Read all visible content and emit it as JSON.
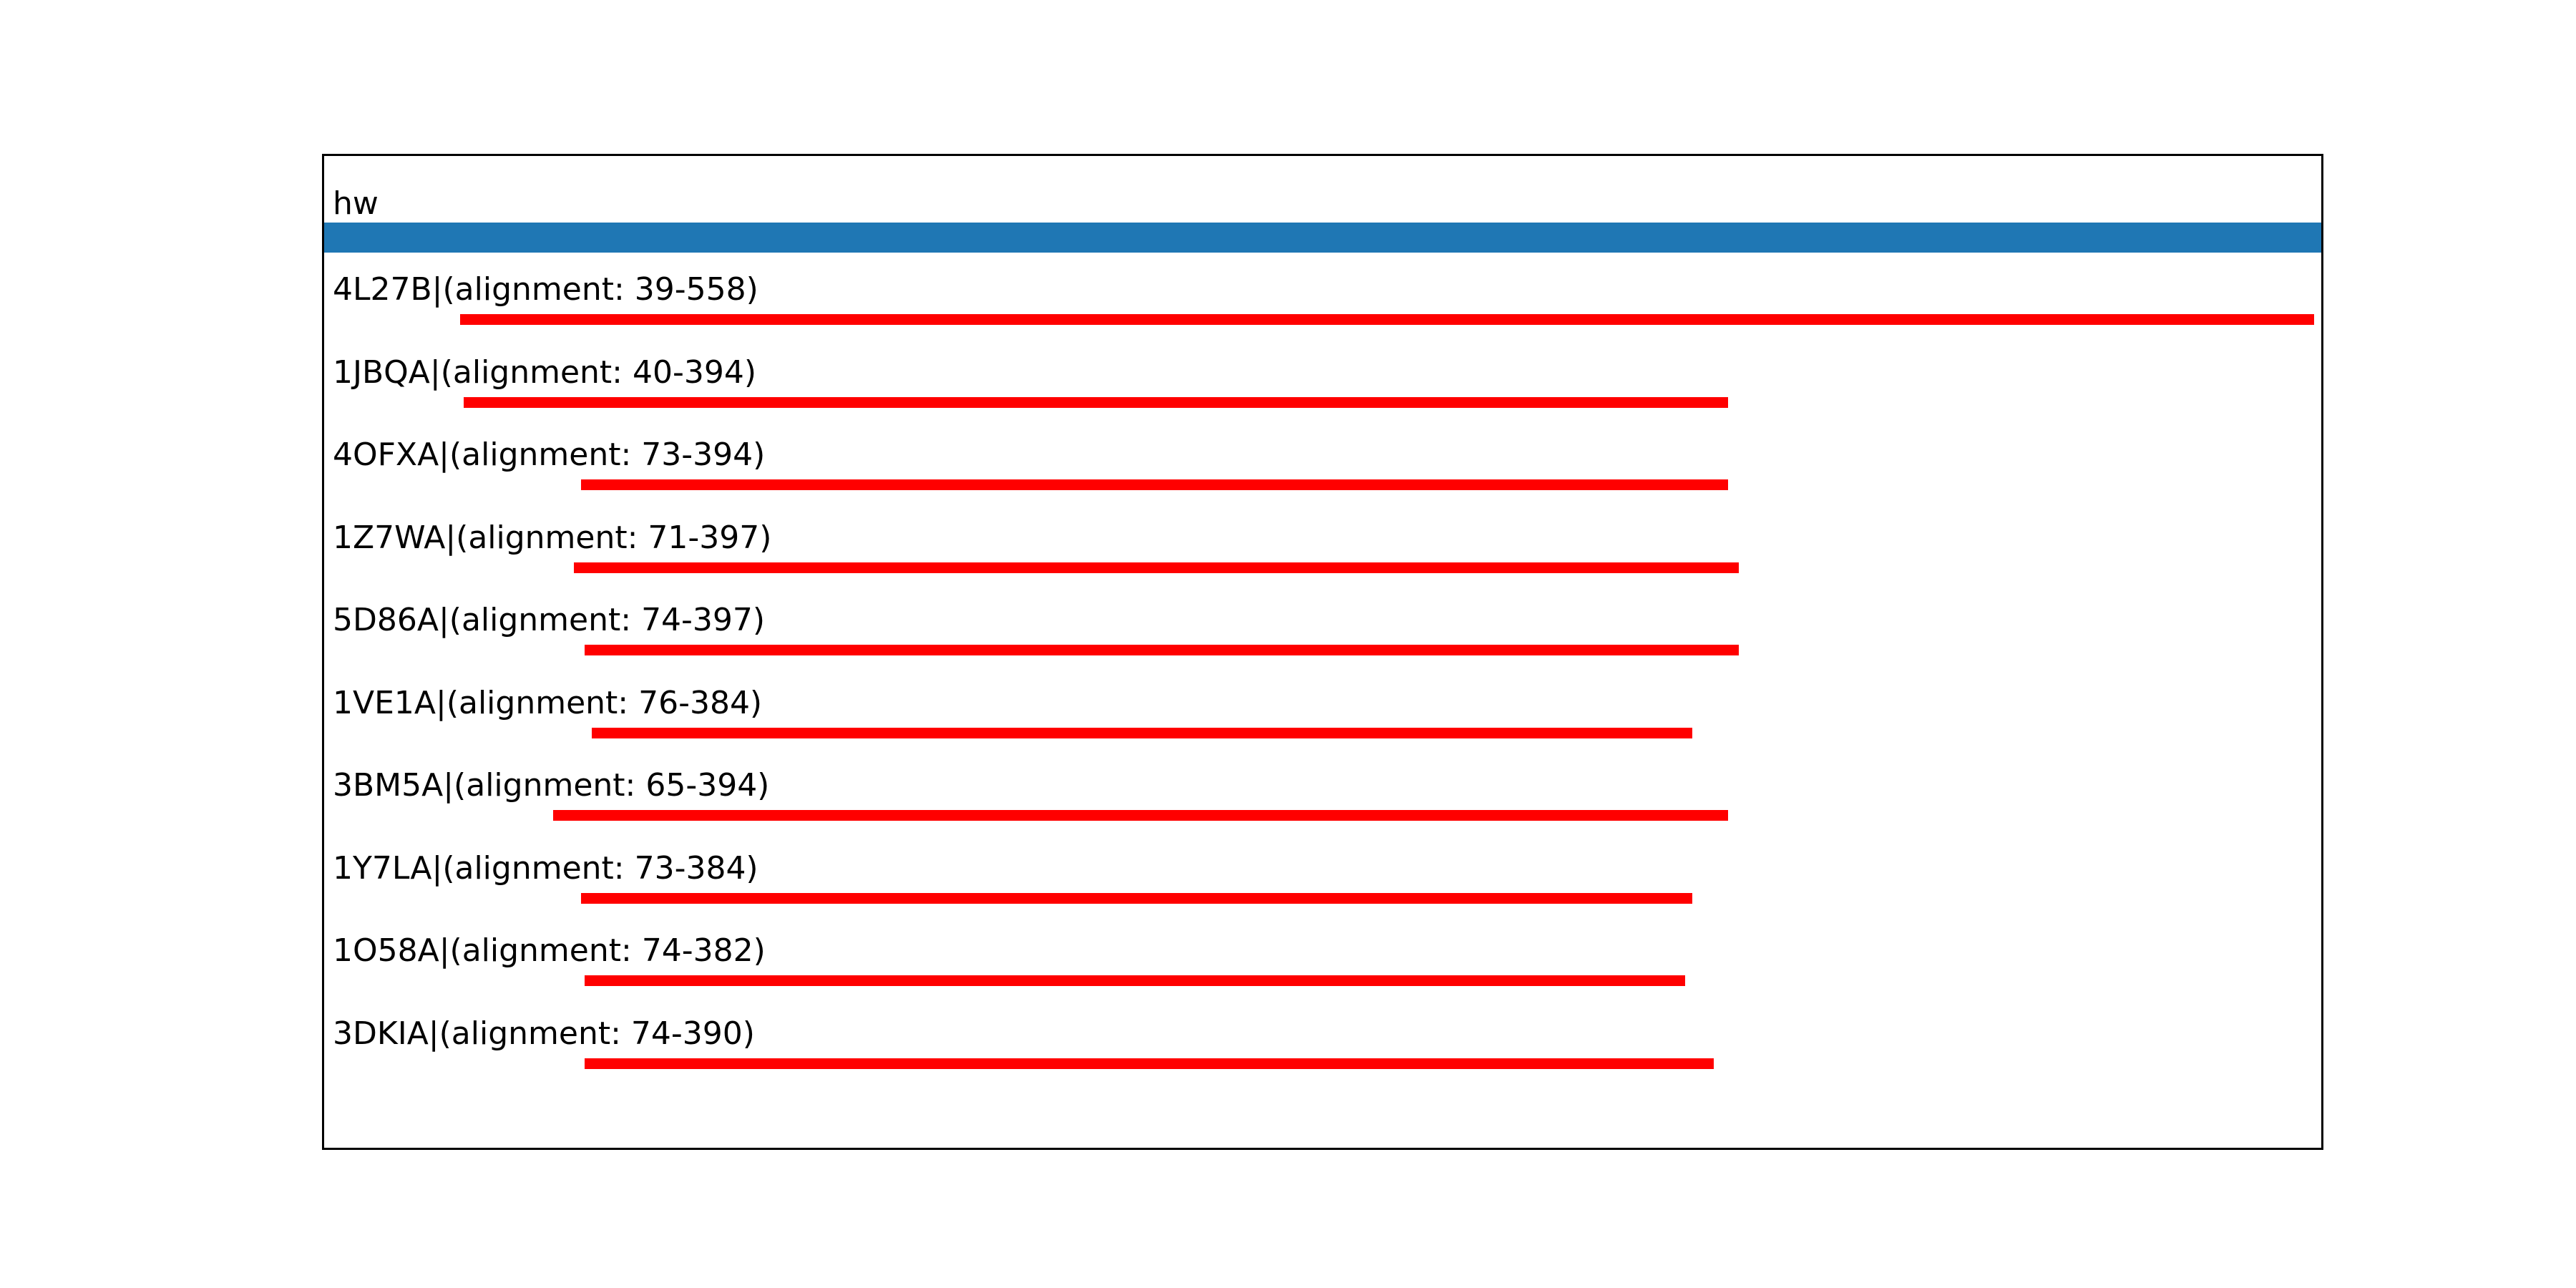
{
  "chart_data": {
    "type": "bar",
    "title": "hw",
    "legend": null,
    "grid": false,
    "axis": {
      "xmin": 1,
      "xmax": 560,
      "ticks_visible": false
    },
    "query": {
      "name": "hw",
      "color": "#1f77b4"
    },
    "hit_color": "#ff0000",
    "colors": {
      "background": "#ffffff",
      "border": "#000000",
      "text": "#000000"
    },
    "hits": [
      {
        "id": "4L27B",
        "label": "4L27B|(alignment: 39-558)",
        "start": 39,
        "end": 558
      },
      {
        "id": "1JBQA",
        "label": "1JBQA|(alignment: 40-394)",
        "start": 40,
        "end": 394
      },
      {
        "id": "4OFXA",
        "label": "4OFXA|(alignment: 73-394)",
        "start": 73,
        "end": 394
      },
      {
        "id": "1Z7WA",
        "label": "1Z7WA|(alignment: 71-397)",
        "start": 71,
        "end": 397
      },
      {
        "id": "5D86A",
        "label": "5D86A|(alignment: 74-397)",
        "start": 74,
        "end": 397
      },
      {
        "id": "1VE1A",
        "label": "1VE1A|(alignment: 76-384)",
        "start": 76,
        "end": 384
      },
      {
        "id": "3BM5A",
        "label": "3BM5A|(alignment: 65-394)",
        "start": 65,
        "end": 394
      },
      {
        "id": "1Y7LA",
        "label": "1Y7LA|(alignment: 73-384)",
        "start": 73,
        "end": 384
      },
      {
        "id": "1O58A",
        "label": "1O58A|(alignment: 74-382)",
        "start": 74,
        "end": 382
      },
      {
        "id": "3DKIA",
        "label": "3DKIA|(alignment: 74-390)",
        "start": 74,
        "end": 390
      }
    ]
  }
}
